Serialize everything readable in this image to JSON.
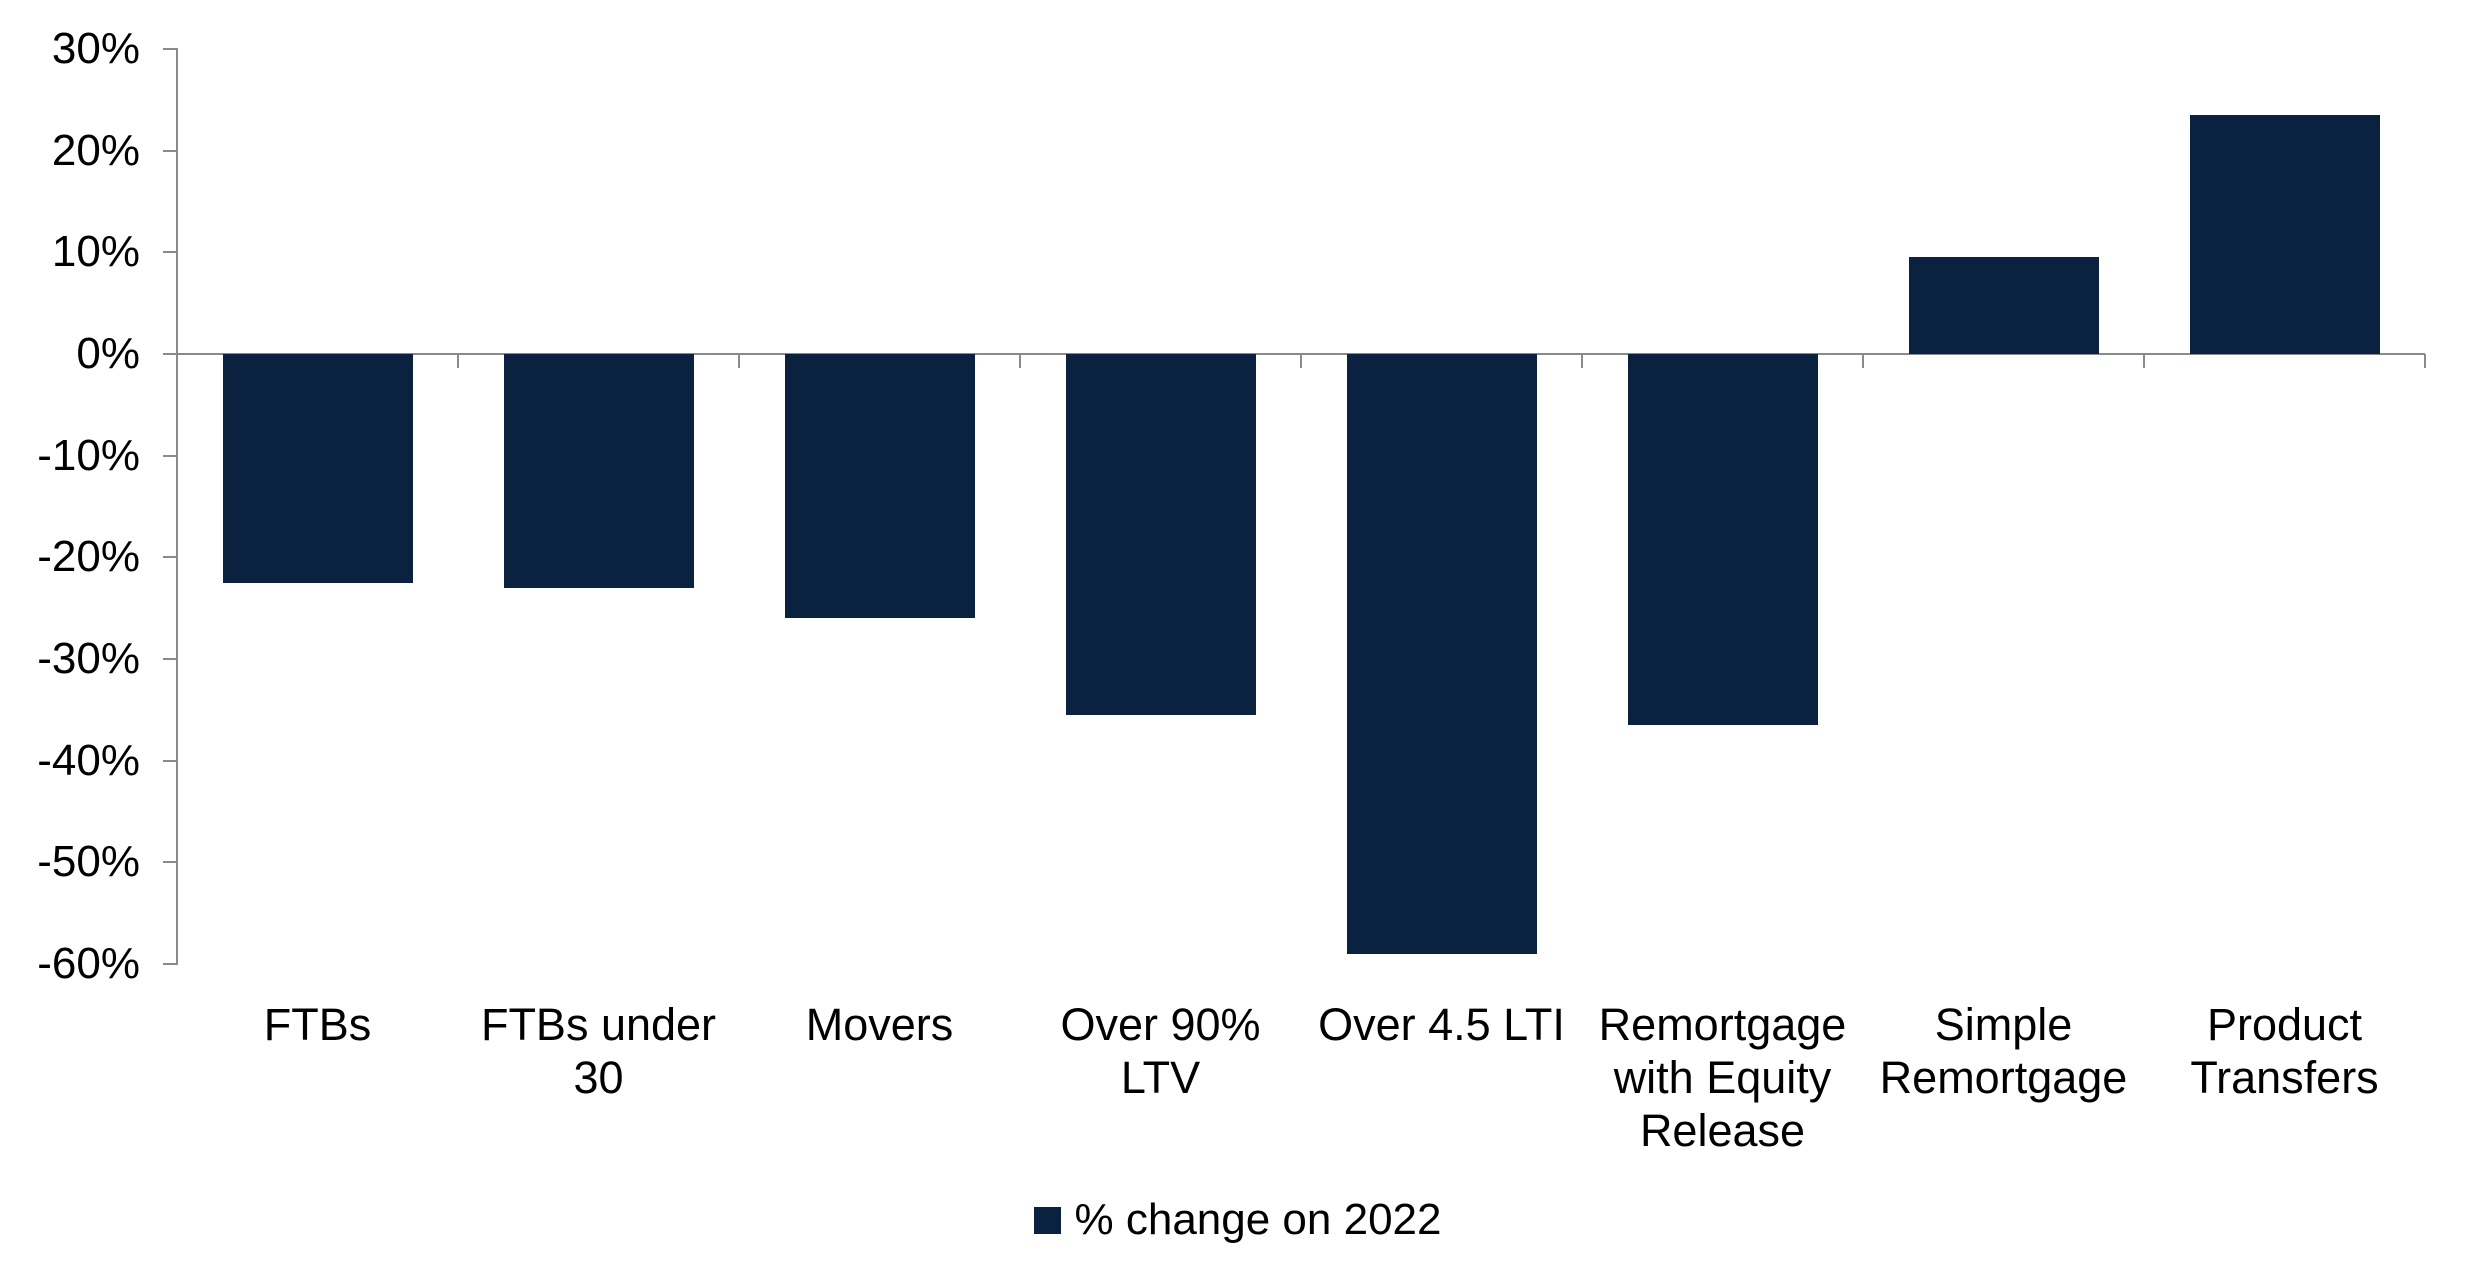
{
  "chart_data": {
    "type": "bar",
    "title": "",
    "categories": [
      "FTBs",
      "FTBs under 30",
      "Movers",
      "Over 90% LTV",
      "Over 4.5 LTI",
      "Remortgage with Equity Release",
      "Simple Remortgage",
      "Product Transfers"
    ],
    "category_lines": [
      [
        "FTBs"
      ],
      [
        "FTBs under",
        "30"
      ],
      [
        "Movers"
      ],
      [
        "Over 90%",
        "LTV"
      ],
      [
        "Over 4.5 LTI"
      ],
      [
        "Remortgage",
        "with Equity",
        "Release"
      ],
      [
        "Simple",
        "Remortgage"
      ],
      [
        "Product",
        "Transfers"
      ]
    ],
    "series": [
      {
        "name": "% change on 2022",
        "values": [
          -22.5,
          -23,
          -26,
          -35.5,
          -59,
          -36.5,
          9.5,
          23.5
        ]
      }
    ],
    "xlabel": "",
    "ylabel": "",
    "ylim": [
      -60,
      30
    ],
    "y_tick_step": 10,
    "y_tick_labels": [
      "30%",
      "20%",
      "10%",
      "0%",
      "-10%",
      "-20%",
      "-30%",
      "-40%",
      "-50%",
      "-60%"
    ],
    "grid": "off",
    "legend_position": "bottom",
    "colors": {
      "bar": "#0b2140",
      "axis": "#8a8a8a",
      "text": "#000000",
      "background": "#ffffff"
    }
  },
  "legend": {
    "label": "% change on 2022"
  }
}
